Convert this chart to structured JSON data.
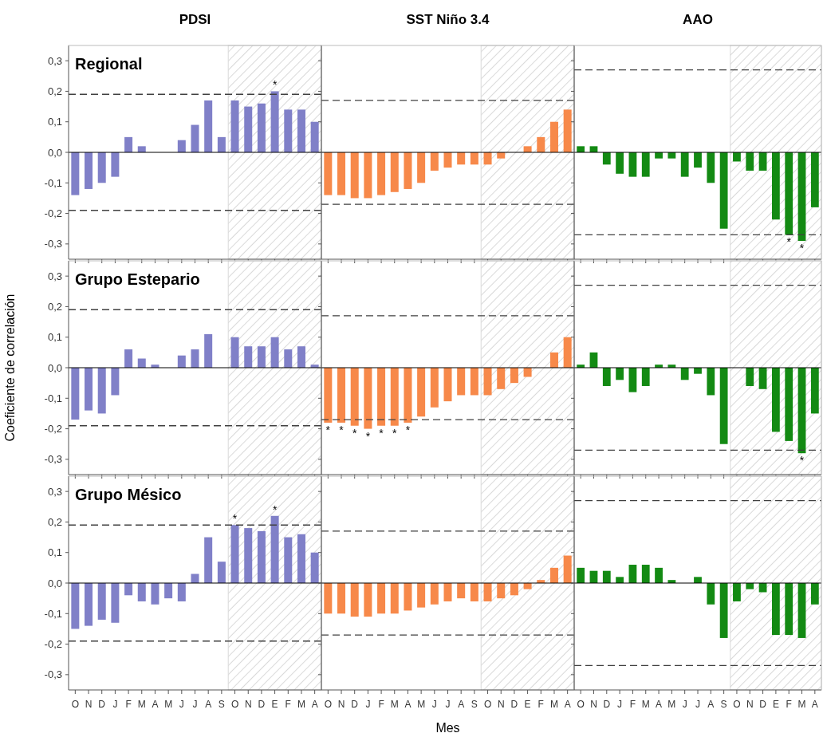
{
  "chart_data": [
    {
      "type": "bar",
      "title": "PDSI",
      "subtitle": "Regional",
      "categories": [
        "O",
        "N",
        "D",
        "J",
        "F",
        "M",
        "A",
        "M",
        "J",
        "J",
        "A",
        "S",
        "O",
        "N",
        "D",
        "E",
        "F",
        "M",
        "A"
      ],
      "values": [
        -0.14,
        -0.12,
        -0.1,
        -0.08,
        0.05,
        0.02,
        0.0,
        0.0,
        0.04,
        0.09,
        0.17,
        0.05,
        0.17,
        0.15,
        0.16,
        0.2,
        0.14,
        0.14,
        0.1
      ],
      "color": "#8080c8",
      "ylim": [
        -0.35,
        0.35
      ],
      "yticks": [
        {
          "value": -0.3,
          "label": "-0,3"
        },
        {
          "value": -0.2,
          "label": "-0,2"
        },
        {
          "value": -0.1,
          "label": "-0,1"
        },
        {
          "value": 0,
          "label": "0,0"
        },
        {
          "value": 0.1,
          "label": "0,1"
        },
        {
          "value": 0.2,
          "label": "0,2"
        },
        {
          "value": 0.3,
          "label": "0,3"
        }
      ],
      "ref_lines": [
        {
          "axis": "y",
          "value": 0.19,
          "color": "#404040",
          "line_style": "dashed"
        },
        {
          "axis": "y",
          "value": -0.19,
          "color": "#404040",
          "line_style": "dashed"
        }
      ],
      "annotations": [
        {
          "text": "*",
          "x": "E",
          "y": 0.2
        }
      ],
      "tick_labels": "y"
    },
    {
      "type": "bar",
      "title": "SST Niño 3.4",
      "categories": [
        "O",
        "N",
        "D",
        "J",
        "F",
        "M",
        "A",
        "M",
        "J",
        "J",
        "A",
        "S",
        "O",
        "N",
        "D",
        "E",
        "F",
        "M",
        "A"
      ],
      "values": [
        -0.14,
        -0.14,
        -0.15,
        -0.15,
        -0.14,
        -0.13,
        -0.12,
        -0.1,
        -0.06,
        -0.05,
        -0.04,
        -0.04,
        -0.04,
        -0.02,
        0.0,
        0.02,
        0.05,
        0.1,
        0.14
      ],
      "color": "#f7894a",
      "ylim": [
        -0.35,
        0.35
      ],
      "yticks": [
        {
          "value": -0.3,
          "label": null
        },
        {
          "value": -0.2,
          "label": null
        },
        {
          "value": -0.1,
          "label": null
        },
        {
          "value": 0,
          "label": null
        },
        {
          "value": 0.1,
          "label": null
        },
        {
          "value": 0.2,
          "label": null
        },
        {
          "value": 0.3,
          "label": null
        }
      ],
      "ref_lines": [
        {
          "axis": "y",
          "value": 0.17,
          "color": "#404040",
          "line_style": "dashed"
        },
        {
          "axis": "y",
          "value": -0.17,
          "color": "#404040",
          "line_style": "dashed"
        }
      ],
      "tick_labels": false
    },
    {
      "type": "bar",
      "title": "AAO",
      "categories": [
        "O",
        "N",
        "D",
        "J",
        "F",
        "M",
        "A",
        "M",
        "J",
        "J",
        "A",
        "S",
        "O",
        "N",
        "D",
        "E",
        "F",
        "M",
        "A"
      ],
      "values": [
        0.02,
        0.02,
        -0.04,
        -0.07,
        -0.08,
        -0.08,
        -0.02,
        -0.02,
        -0.08,
        -0.05,
        -0.1,
        -0.25,
        -0.03,
        -0.06,
        -0.06,
        -0.22,
        -0.27,
        -0.29,
        -0.18
      ],
      "color": "#138a13",
      "ylim": [
        -0.35,
        0.35
      ],
      "yticks": [
        {
          "value": -0.3,
          "label": null
        },
        {
          "value": -0.2,
          "label": null
        },
        {
          "value": -0.1,
          "label": null
        },
        {
          "value": 0,
          "label": null
        },
        {
          "value": 0.1,
          "label": null
        },
        {
          "value": 0.2,
          "label": null
        },
        {
          "value": 0.3,
          "label": null
        }
      ],
      "ref_lines": [
        {
          "axis": "y",
          "value": 0.27,
          "color": "#404040",
          "line_style": "dashed"
        },
        {
          "axis": "y",
          "value": -0.27,
          "color": "#404040",
          "line_style": "dashed"
        }
      ],
      "annotations": [
        {
          "text": "*",
          "y": -0.27
        },
        {
          "text": "*",
          "y": -0.29
        }
      ],
      "tick_labels": false
    },
    {
      "type": "bar",
      "subtitle": "Grupo Estepario",
      "ylabel": "Coeficiente de correlación",
      "categories": [
        "O",
        "N",
        "D",
        "J",
        "F",
        "M",
        "A",
        "M",
        "J",
        "J",
        "A",
        "S",
        "O",
        "N",
        "D",
        "E",
        "F",
        "M",
        "A"
      ],
      "values": [
        -0.17,
        -0.14,
        -0.15,
        -0.09,
        0.06,
        0.03,
        0.01,
        0.0,
        0.04,
        0.06,
        0.11,
        0.0,
        0.1,
        0.07,
        0.07,
        0.1,
        0.06,
        0.07,
        0.01
      ],
      "color": "#8080c8",
      "ylim": [
        -0.35,
        0.35
      ],
      "yticks": [
        {
          "value": -0.3,
          "label": "-0,3"
        },
        {
          "value": -0.2,
          "label": "-0,2"
        },
        {
          "value": -0.1,
          "label": "-0,1"
        },
        {
          "value": 0,
          "label": "0,0"
        },
        {
          "value": 0.1,
          "label": "0,1"
        },
        {
          "value": 0.2,
          "label": "0,2"
        },
        {
          "value": 0.3,
          "label": "0,3"
        }
      ],
      "ref_lines": [
        {
          "axis": "y",
          "value": 0.19,
          "color": "#404040",
          "line_style": "dashed"
        },
        {
          "axis": "y",
          "value": -0.19,
          "color": "#404040",
          "line_style": "dashed"
        }
      ],
      "tick_labels": "y"
    },
    {
      "type": "bar",
      "categories": [
        "O",
        "N",
        "D",
        "J",
        "F",
        "M",
        "A",
        "M",
        "J",
        "J",
        "A",
        "S",
        "O",
        "N",
        "D",
        "E",
        "F",
        "M",
        "A"
      ],
      "values": [
        -0.18,
        -0.18,
        -0.19,
        -0.2,
        -0.19,
        -0.19,
        -0.18,
        -0.16,
        -0.13,
        -0.11,
        -0.09,
        -0.09,
        -0.09,
        -0.07,
        -0.05,
        -0.03,
        0.0,
        0.05,
        0.1
      ],
      "color": "#f7894a",
      "ylim": [
        -0.35,
        0.35
      ],
      "yticks": [
        {
          "value": -0.3,
          "label": null
        },
        {
          "value": -0.2,
          "label": null
        },
        {
          "value": -0.1,
          "label": null
        },
        {
          "value": 0,
          "label": null
        },
        {
          "value": 0.1,
          "label": null
        },
        {
          "value": 0.2,
          "label": null
        },
        {
          "value": 0.3,
          "label": null
        }
      ],
      "ref_lines": [
        {
          "axis": "y",
          "value": 0.17,
          "color": "#404040",
          "line_style": "dashed"
        },
        {
          "axis": "y",
          "value": -0.17,
          "color": "#404040",
          "line_style": "dashed"
        }
      ],
      "annotations": [
        {
          "text": "*",
          "x": "O",
          "y": -0.18
        },
        {
          "text": "*",
          "x": "N",
          "y": -0.18
        },
        {
          "text": "*",
          "x": "D",
          "y": -0.19
        },
        {
          "text": "*",
          "x": "J",
          "y": -0.2
        },
        {
          "text": "*",
          "x": "F",
          "y": -0.19
        },
        {
          "text": "*",
          "x": "M",
          "y": -0.19
        },
        {
          "text": "*",
          "x": "A",
          "y": -0.18
        }
      ],
      "tick_labels": false
    },
    {
      "type": "bar",
      "categories": [
        "O",
        "N",
        "D",
        "J",
        "F",
        "M",
        "A",
        "M",
        "J",
        "J",
        "A",
        "S",
        "O",
        "N",
        "D",
        "E",
        "F",
        "M",
        "A"
      ],
      "values": [
        0.01,
        0.05,
        -0.06,
        -0.04,
        -0.08,
        -0.06,
        0.01,
        0.01,
        -0.04,
        -0.02,
        -0.09,
        -0.25,
        0.0,
        -0.06,
        -0.07,
        -0.21,
        -0.24,
        -0.28,
        -0.15
      ],
      "color": "#138a13",
      "ylim": [
        -0.35,
        0.35
      ],
      "yticks": [
        {
          "value": -0.3,
          "label": null
        },
        {
          "value": -0.2,
          "label": null
        },
        {
          "value": -0.1,
          "label": null
        },
        {
          "value": 0,
          "label": null
        },
        {
          "value": 0.1,
          "label": null
        },
        {
          "value": 0.2,
          "label": null
        },
        {
          "value": 0.3,
          "label": null
        }
      ],
      "ref_lines": [
        {
          "axis": "y",
          "value": 0.27,
          "color": "#404040",
          "line_style": "dashed"
        },
        {
          "axis": "y",
          "value": -0.27,
          "color": "#404040",
          "line_style": "dashed"
        }
      ],
      "annotations": [
        {
          "text": "*",
          "y": -0.28
        }
      ],
      "tick_labels": false
    },
    {
      "type": "bar",
      "subtitle": "Grupo Mésico",
      "categories": [
        "O",
        "N",
        "D",
        "J",
        "F",
        "M",
        "A",
        "M",
        "J",
        "J",
        "A",
        "S",
        "O",
        "N",
        "D",
        "E",
        "F",
        "M",
        "A"
      ],
      "values": [
        -0.15,
        -0.14,
        -0.12,
        -0.13,
        -0.04,
        -0.06,
        -0.07,
        -0.05,
        -0.06,
        0.03,
        0.15,
        0.07,
        0.19,
        0.18,
        0.17,
        0.22,
        0.15,
        0.16,
        0.1
      ],
      "color": "#8080c8",
      "ylim": [
        -0.35,
        0.35
      ],
      "yticks": [
        {
          "value": -0.3,
          "label": "-0,3"
        },
        {
          "value": -0.2,
          "label": "-0,2"
        },
        {
          "value": -0.1,
          "label": "-0,1"
        },
        {
          "value": 0,
          "label": "0,0"
        },
        {
          "value": 0.1,
          "label": "0,1"
        },
        {
          "value": 0.2,
          "label": "0,2"
        },
        {
          "value": 0.3,
          "label": "0,3"
        }
      ],
      "ref_lines": [
        {
          "axis": "y",
          "value": 0.19,
          "color": "#404040",
          "line_style": "dashed"
        },
        {
          "axis": "y",
          "value": -0.19,
          "color": "#404040",
          "line_style": "dashed"
        }
      ],
      "annotations": [
        {
          "text": "*",
          "y": 0.19
        },
        {
          "text": "*",
          "x": "E",
          "y": 0.22
        }
      ]
    },
    {
      "type": "bar",
      "xlabel": "Mes",
      "categories": [
        "O",
        "N",
        "D",
        "J",
        "F",
        "M",
        "A",
        "M",
        "J",
        "J",
        "A",
        "S",
        "O",
        "N",
        "D",
        "E",
        "F",
        "M",
        "A"
      ],
      "values": [
        -0.1,
        -0.1,
        -0.11,
        -0.11,
        -0.1,
        -0.1,
        -0.09,
        -0.08,
        -0.07,
        -0.06,
        -0.05,
        -0.06,
        -0.06,
        -0.05,
        -0.04,
        -0.02,
        0.01,
        0.05,
        0.09
      ],
      "color": "#f7894a",
      "ylim": [
        -0.35,
        0.35
      ],
      "yticks": [
        {
          "value": -0.3,
          "label": null
        },
        {
          "value": -0.2,
          "label": null
        },
        {
          "value": -0.1,
          "label": null
        },
        {
          "value": 0,
          "label": null
        },
        {
          "value": 0.1,
          "label": null
        },
        {
          "value": 0.2,
          "label": null
        },
        {
          "value": 0.3,
          "label": null
        }
      ],
      "ref_lines": [
        {
          "axis": "y",
          "value": 0.17,
          "color": "#404040",
          "line_style": "dashed"
        },
        {
          "axis": "y",
          "value": -0.17,
          "color": "#404040",
          "line_style": "dashed"
        }
      ],
      "tick_labels": "x"
    },
    {
      "type": "bar",
      "categories": [
        "O",
        "N",
        "D",
        "J",
        "F",
        "M",
        "A",
        "M",
        "J",
        "J",
        "A",
        "S",
        "O",
        "N",
        "D",
        "E",
        "F",
        "M",
        "A"
      ],
      "values": [
        0.05,
        0.04,
        0.04,
        0.02,
        0.06,
        0.06,
        0.05,
        0.01,
        0.0,
        0.02,
        -0.07,
        -0.18,
        -0.06,
        -0.02,
        -0.03,
        -0.17,
        -0.17,
        -0.18,
        -0.07
      ],
      "color": "#138a13",
      "ylim": [
        -0.35,
        0.35
      ],
      "yticks": [
        {
          "value": -0.3,
          "label": null
        },
        {
          "value": -0.2,
          "label": null
        },
        {
          "value": -0.1,
          "label": null
        },
        {
          "value": 0,
          "label": null
        },
        {
          "value": 0.1,
          "label": null
        },
        {
          "value": 0.2,
          "label": null
        },
        {
          "value": 0.3,
          "label": null
        }
      ],
      "ref_lines": [
        {
          "axis": "y",
          "value": 0.27,
          "color": "#404040",
          "line_style": "dashed"
        },
        {
          "axis": "y",
          "value": -0.27,
          "color": "#404040",
          "line_style": "dashed"
        }
      ],
      "tick_labels": "x"
    }
  ]
}
